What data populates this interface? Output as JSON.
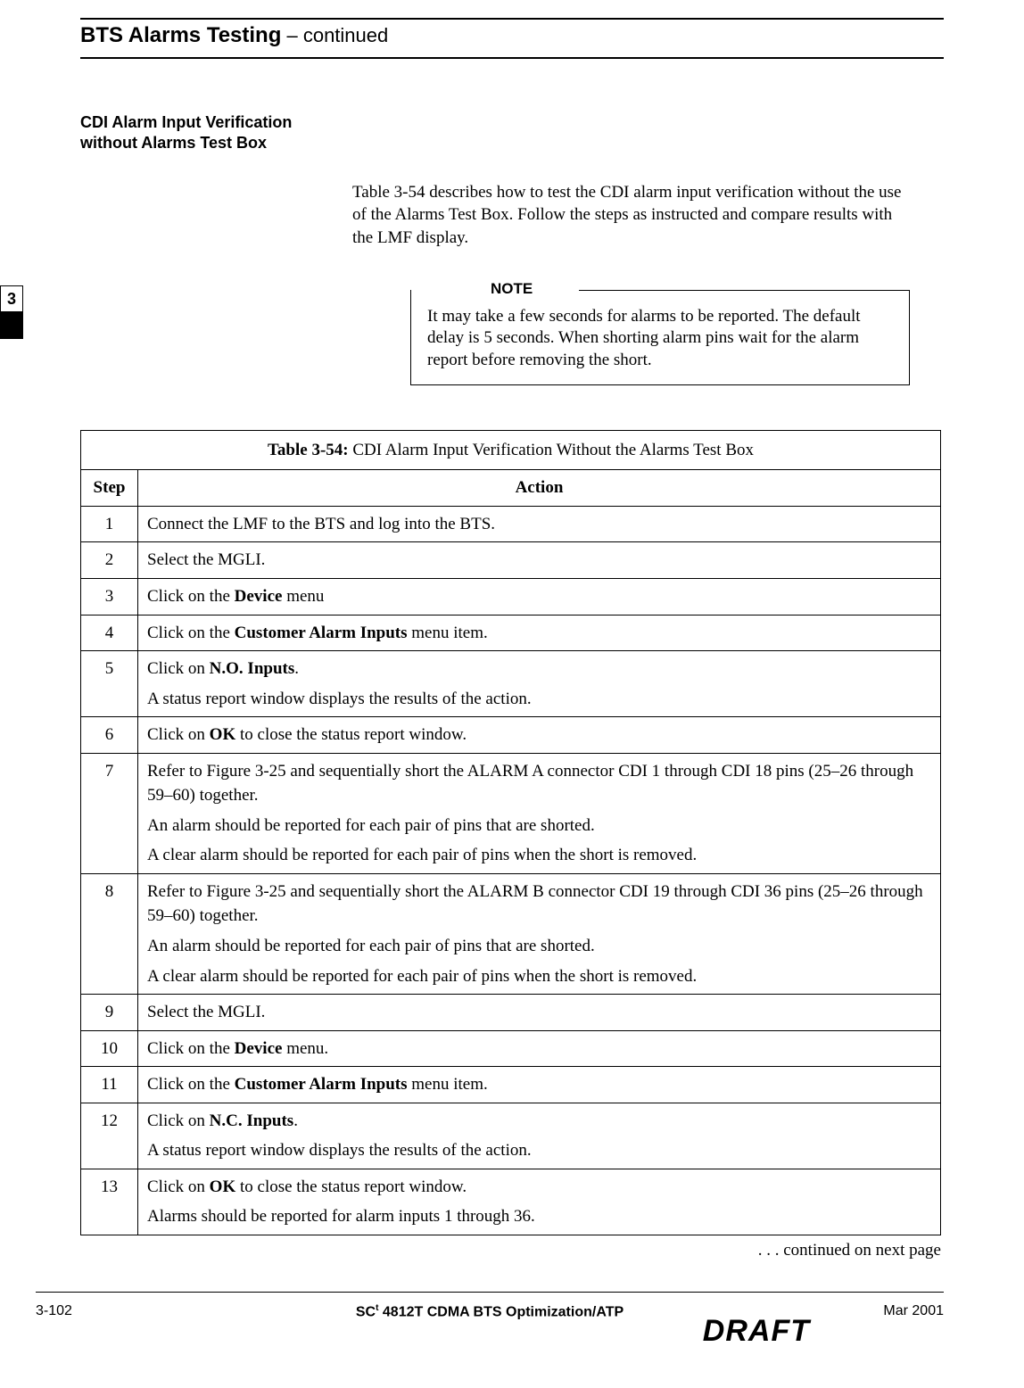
{
  "header": {
    "title": "BTS Alarms Testing",
    "continuation": " – continued"
  },
  "side_tab": {
    "chapter": "3"
  },
  "section": {
    "heading_line1": "CDI Alarm Input Verification",
    "heading_line2": "without Alarms Test Box",
    "intro": "Table 3-54 describes how to test the CDI alarm input verification without the use of the Alarms Test Box. Follow the steps as instructed and compare results with the LMF display."
  },
  "note": {
    "label": "NOTE",
    "text": "It may take a few seconds for alarms to be reported. The default delay is 5 seconds. When shorting alarm pins wait for the alarm report before removing the short."
  },
  "table": {
    "caption_label": "Table 3-54:",
    "caption_text": " CDI Alarm Input Verification Without the Alarms Test Box",
    "col_step": "Step",
    "col_action": "Action",
    "rows": [
      {
        "step": "1",
        "action_html": "Connect the LMF to the BTS and log into the BTS."
      },
      {
        "step": "2",
        "action_html": "Select the MGLI."
      },
      {
        "step": "3",
        "action_html": "Click on the <b>Device</b> menu"
      },
      {
        "step": "4",
        "action_html": "Click on the <b>Customer Alarm Inputs</b> menu item."
      },
      {
        "step": "5",
        "action_html": "<p>Click on <b>N.O. Inputs</b>.</p><p>A status report window displays the results of the action.</p>"
      },
      {
        "step": "6",
        "action_html": "Click on <b>OK</b> to close the status report window."
      },
      {
        "step": "7",
        "action_html": "<p>Refer to Figure 3-25 and sequentially short the ALARM A connector CDI 1 through CDI 18 pins (25–26 through 59–60) together.</p><p>An alarm should be reported for each pair of pins that are shorted.</p><p>A clear alarm should be reported for each pair of pins when the short is removed.</p>"
      },
      {
        "step": "8",
        "action_html": "<p>Refer to Figure 3-25 and sequentially short the ALARM B connector CDI 19 through CDI 36 pins (25–26 through 59–60) together.</p><p>An alarm should be reported for each pair of pins that are shorted.</p><p>A clear alarm should be reported for each pair of pins when the short is removed.</p>"
      },
      {
        "step": "9",
        "action_html": "Select the MGLI."
      },
      {
        "step": "10",
        "action_html": "Click on the <b>Device</b> menu."
      },
      {
        "step": "11",
        "action_html": "Click on the <b>Customer Alarm Inputs</b> menu item."
      },
      {
        "step": "12",
        "action_html": "<p>Click on <b>N.C. Inputs</b>.</p><p>A status report window displays the results of the action.</p>"
      },
      {
        "step": "13",
        "action_html": "<p>Click on <b>OK</b> to close the status report window.</p><p>Alarms should be reported for alarm inputs 1 through 36.</p>"
      }
    ],
    "continued": ". . . continued on next page"
  },
  "footer": {
    "page": "3-102",
    "center_pre": "SC",
    "center_post": "4812T CDMA BTS Optimization/ATP",
    "date": "Mar 2001",
    "watermark": "DRAFT"
  }
}
